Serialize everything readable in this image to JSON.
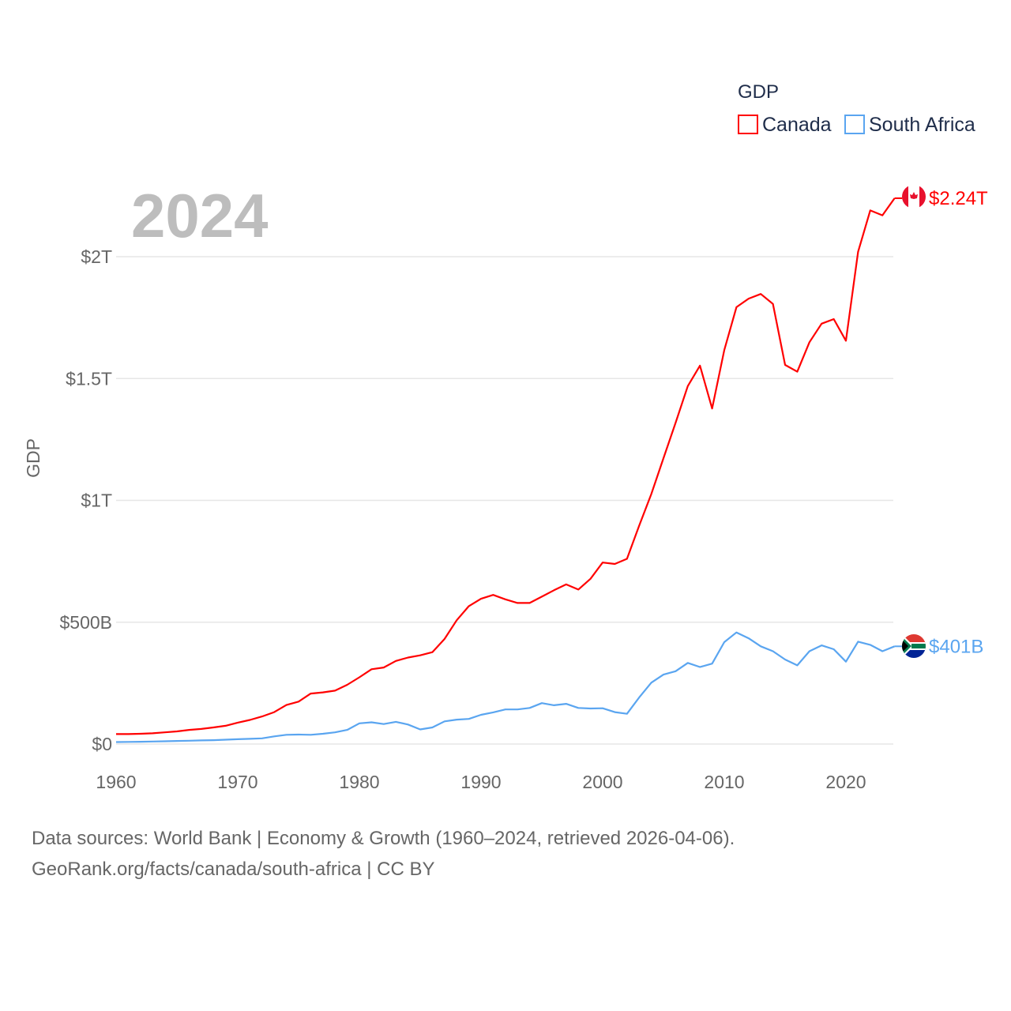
{
  "chart_data": {
    "type": "line",
    "title": "GDP",
    "year_label": "2024",
    "ylabel": "GDP",
    "xlabel": "",
    "xlim": [
      1960,
      2024
    ],
    "ylim": [
      0,
      2300
    ],
    "units": "billion USD",
    "x_ticks": [
      1960,
      1970,
      1980,
      1990,
      2000,
      2010,
      2020
    ],
    "y_ticks": [
      {
        "value": 0,
        "label": "$0"
      },
      {
        "value": 500,
        "label": "$500B"
      },
      {
        "value": 1000,
        "label": "$1T"
      },
      {
        "value": 1500,
        "label": "$1.5T"
      },
      {
        "value": 2000,
        "label": "$2T"
      }
    ],
    "grid": true,
    "legend_position": "top-right",
    "x": [
      1960,
      1961,
      1962,
      1963,
      1964,
      1965,
      1966,
      1967,
      1968,
      1969,
      1970,
      1971,
      1972,
      1973,
      1974,
      1975,
      1976,
      1977,
      1978,
      1979,
      1980,
      1981,
      1982,
      1983,
      1984,
      1985,
      1986,
      1987,
      1988,
      1989,
      1990,
      1991,
      1992,
      1993,
      1994,
      1995,
      1996,
      1997,
      1998,
      1999,
      2000,
      2001,
      2002,
      2003,
      2004,
      2005,
      2006,
      2007,
      2008,
      2009,
      2010,
      2011,
      2012,
      2013,
      2014,
      2015,
      2016,
      2017,
      2018,
      2019,
      2020,
      2021,
      2022,
      2023,
      2024
    ],
    "series": [
      {
        "name": "Canada",
        "color": "#ff0000",
        "end_label": "$2.24T",
        "values": [
          41,
          41,
          42,
          44,
          48,
          52,
          58,
          62,
          68,
          75,
          88,
          99,
          113,
          131,
          160,
          174,
          207,
          212,
          219,
          243,
          274,
          307,
          314,
          341,
          355,
          364,
          377,
          431,
          508,
          566,
          596,
          612,
          594,
          579,
          579,
          605,
          631,
          655,
          634,
          678,
          745,
          739,
          760,
          896,
          1026,
          1173,
          1319,
          1469,
          1553,
          1377,
          1617,
          1793,
          1828,
          1847,
          1806,
          1556,
          1528,
          1649,
          1725,
          1744,
          1655,
          2020,
          2190,
          2170,
          2240
        ]
      },
      {
        "name": "South Africa",
        "color": "#5aa5f0",
        "end_label": "$401B",
        "values": [
          8,
          8.7,
          9.3,
          10.4,
          11.5,
          12.5,
          13.6,
          15,
          15.8,
          17.8,
          19.9,
          21.4,
          23.3,
          31.4,
          38,
          39,
          38,
          42,
          48,
          58,
          85,
          89,
          82,
          91,
          80,
          60,
          68,
          93,
          100,
          103,
          120,
          130,
          142,
          142,
          148,
          168,
          159,
          165,
          148,
          146,
          147,
          131,
          124,
          191,
          252,
          285,
          299,
          333,
          316,
          330,
          418,
          458,
          434,
          401,
          381,
          347,
          323,
          381,
          405,
          389,
          338,
          420,
          407,
          381,
          401
        ]
      }
    ]
  },
  "footer": {
    "line1": "Data sources: World Bank | Economy & Growth (1960–2024, retrieved 2026-04-06).",
    "line2": "GeoRank.org/facts/canada/south-africa | CC BY"
  }
}
